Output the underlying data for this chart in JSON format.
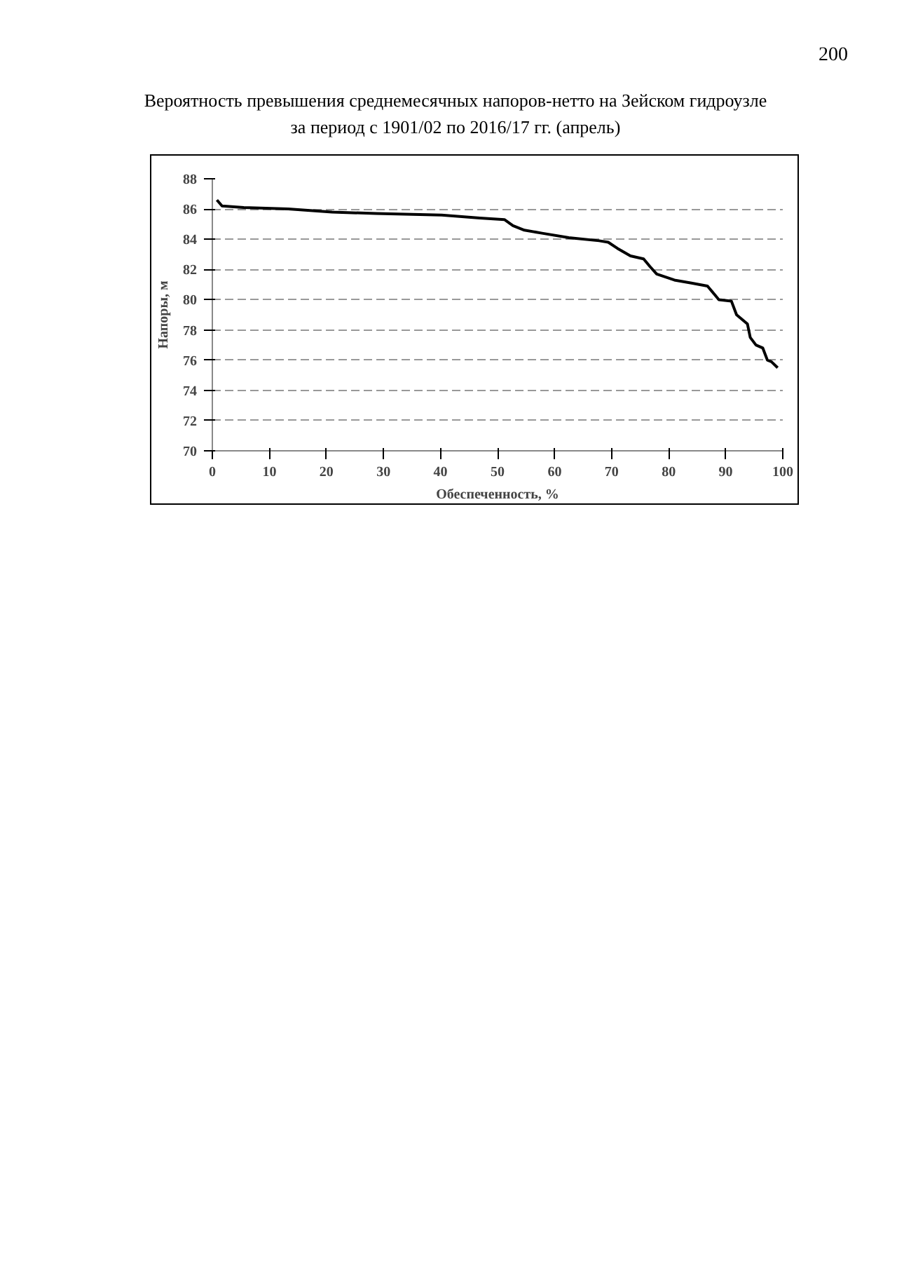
{
  "chart_data": {
    "type": "line",
    "title": "Вероятность превышения среднемесячных напоров-нетто на Зейском гидроузле",
    "subtitle": "за период с 1901/02 по 2016/17 гг. (апрель)",
    "annotations": [
      "200"
    ],
    "xlabel": "Обеспеченность, %",
    "ylabel": "Напоры, м",
    "series": [
      {
        "color": "#000000",
        "x": [
          0.8,
          1.7,
          5.5,
          13.3,
          21,
          28.7,
          40.2,
          46.9,
          51.2,
          52.7,
          54.7,
          57.8,
          62.5,
          67.8,
          69.4,
          71,
          73.3,
          75.6,
          76.7,
          77.9,
          81,
          84,
          86.8,
          88.8,
          91,
          91.9,
          93.8,
          94.3,
          95.3,
          96.5,
          97.3,
          98,
          99.1
        ],
        "values": [
          86.6,
          86.2,
          86.1,
          86.0,
          85.8,
          85.7,
          85.6,
          85.4,
          85.3,
          84.9,
          84.6,
          84.4,
          84.1,
          83.9,
          83.8,
          83.4,
          82.9,
          82.7,
          82.2,
          81.7,
          81.3,
          81.1,
          80.9,
          80.0,
          79.9,
          79.0,
          78.4,
          77.5,
          77.0,
          76.8,
          76.0,
          75.9,
          75.5
        ]
      }
    ],
    "xlim": [
      0,
      100
    ],
    "xticks": [
      0,
      10,
      20,
      30,
      40,
      50,
      60,
      70,
      80,
      90,
      100
    ],
    "ylim": [
      70,
      88
    ],
    "yticks": [
      70,
      72,
      74,
      76,
      78,
      80,
      82,
      84,
      86,
      88
    ],
    "grid": "y",
    "line_style": "solid"
  }
}
